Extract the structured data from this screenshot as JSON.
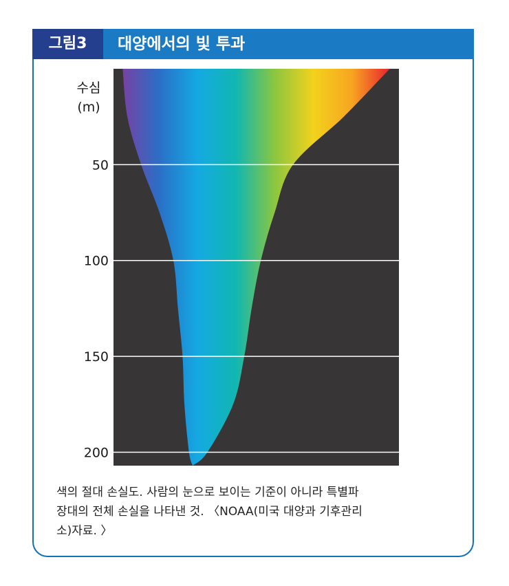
{
  "figure": {
    "tag": "그림3",
    "title": "대양에서의 빛 투과"
  },
  "chart_data": {
    "type": "area",
    "title": "대양에서의 빛 투과",
    "ylabel_line1": "수심",
    "ylabel_line2": "(m)",
    "y_axis_inverted": true,
    "ylim": [
      0,
      207
    ],
    "yticks": [
      50,
      100,
      150,
      200
    ],
    "grid": true,
    "spectrum_colors": [
      "#7b3fa2",
      "#2b6fc6",
      "#14a9e3",
      "#11b7b0",
      "#8cc63f",
      "#f2d21c",
      "#f7a521",
      "#e8202f"
    ],
    "series": [
      {
        "depth": [
          0,
          25,
          50,
          75,
          100,
          125,
          150,
          175,
          200,
          207
        ],
        "left_edge_wavelength_nm": [
          400,
          405,
          420,
          440,
          455,
          460,
          465,
          467,
          472,
          476
        ],
        "right_edge_wavelength_nm": [
          690,
          640,
          585,
          565,
          550,
          540,
          532,
          520,
          492,
          476
        ]
      }
    ],
    "background_color": "#373536"
  },
  "caption": {
    "line1": "색의 절대 손실도. 사람의 눈으로 보이는 기준이 아니라 특별파",
    "line2": "장대의 전체 손실을 나타낸 것. 〈NOAA(미국 대양과 기후관리",
    "line3": "소)자료. 〉"
  }
}
